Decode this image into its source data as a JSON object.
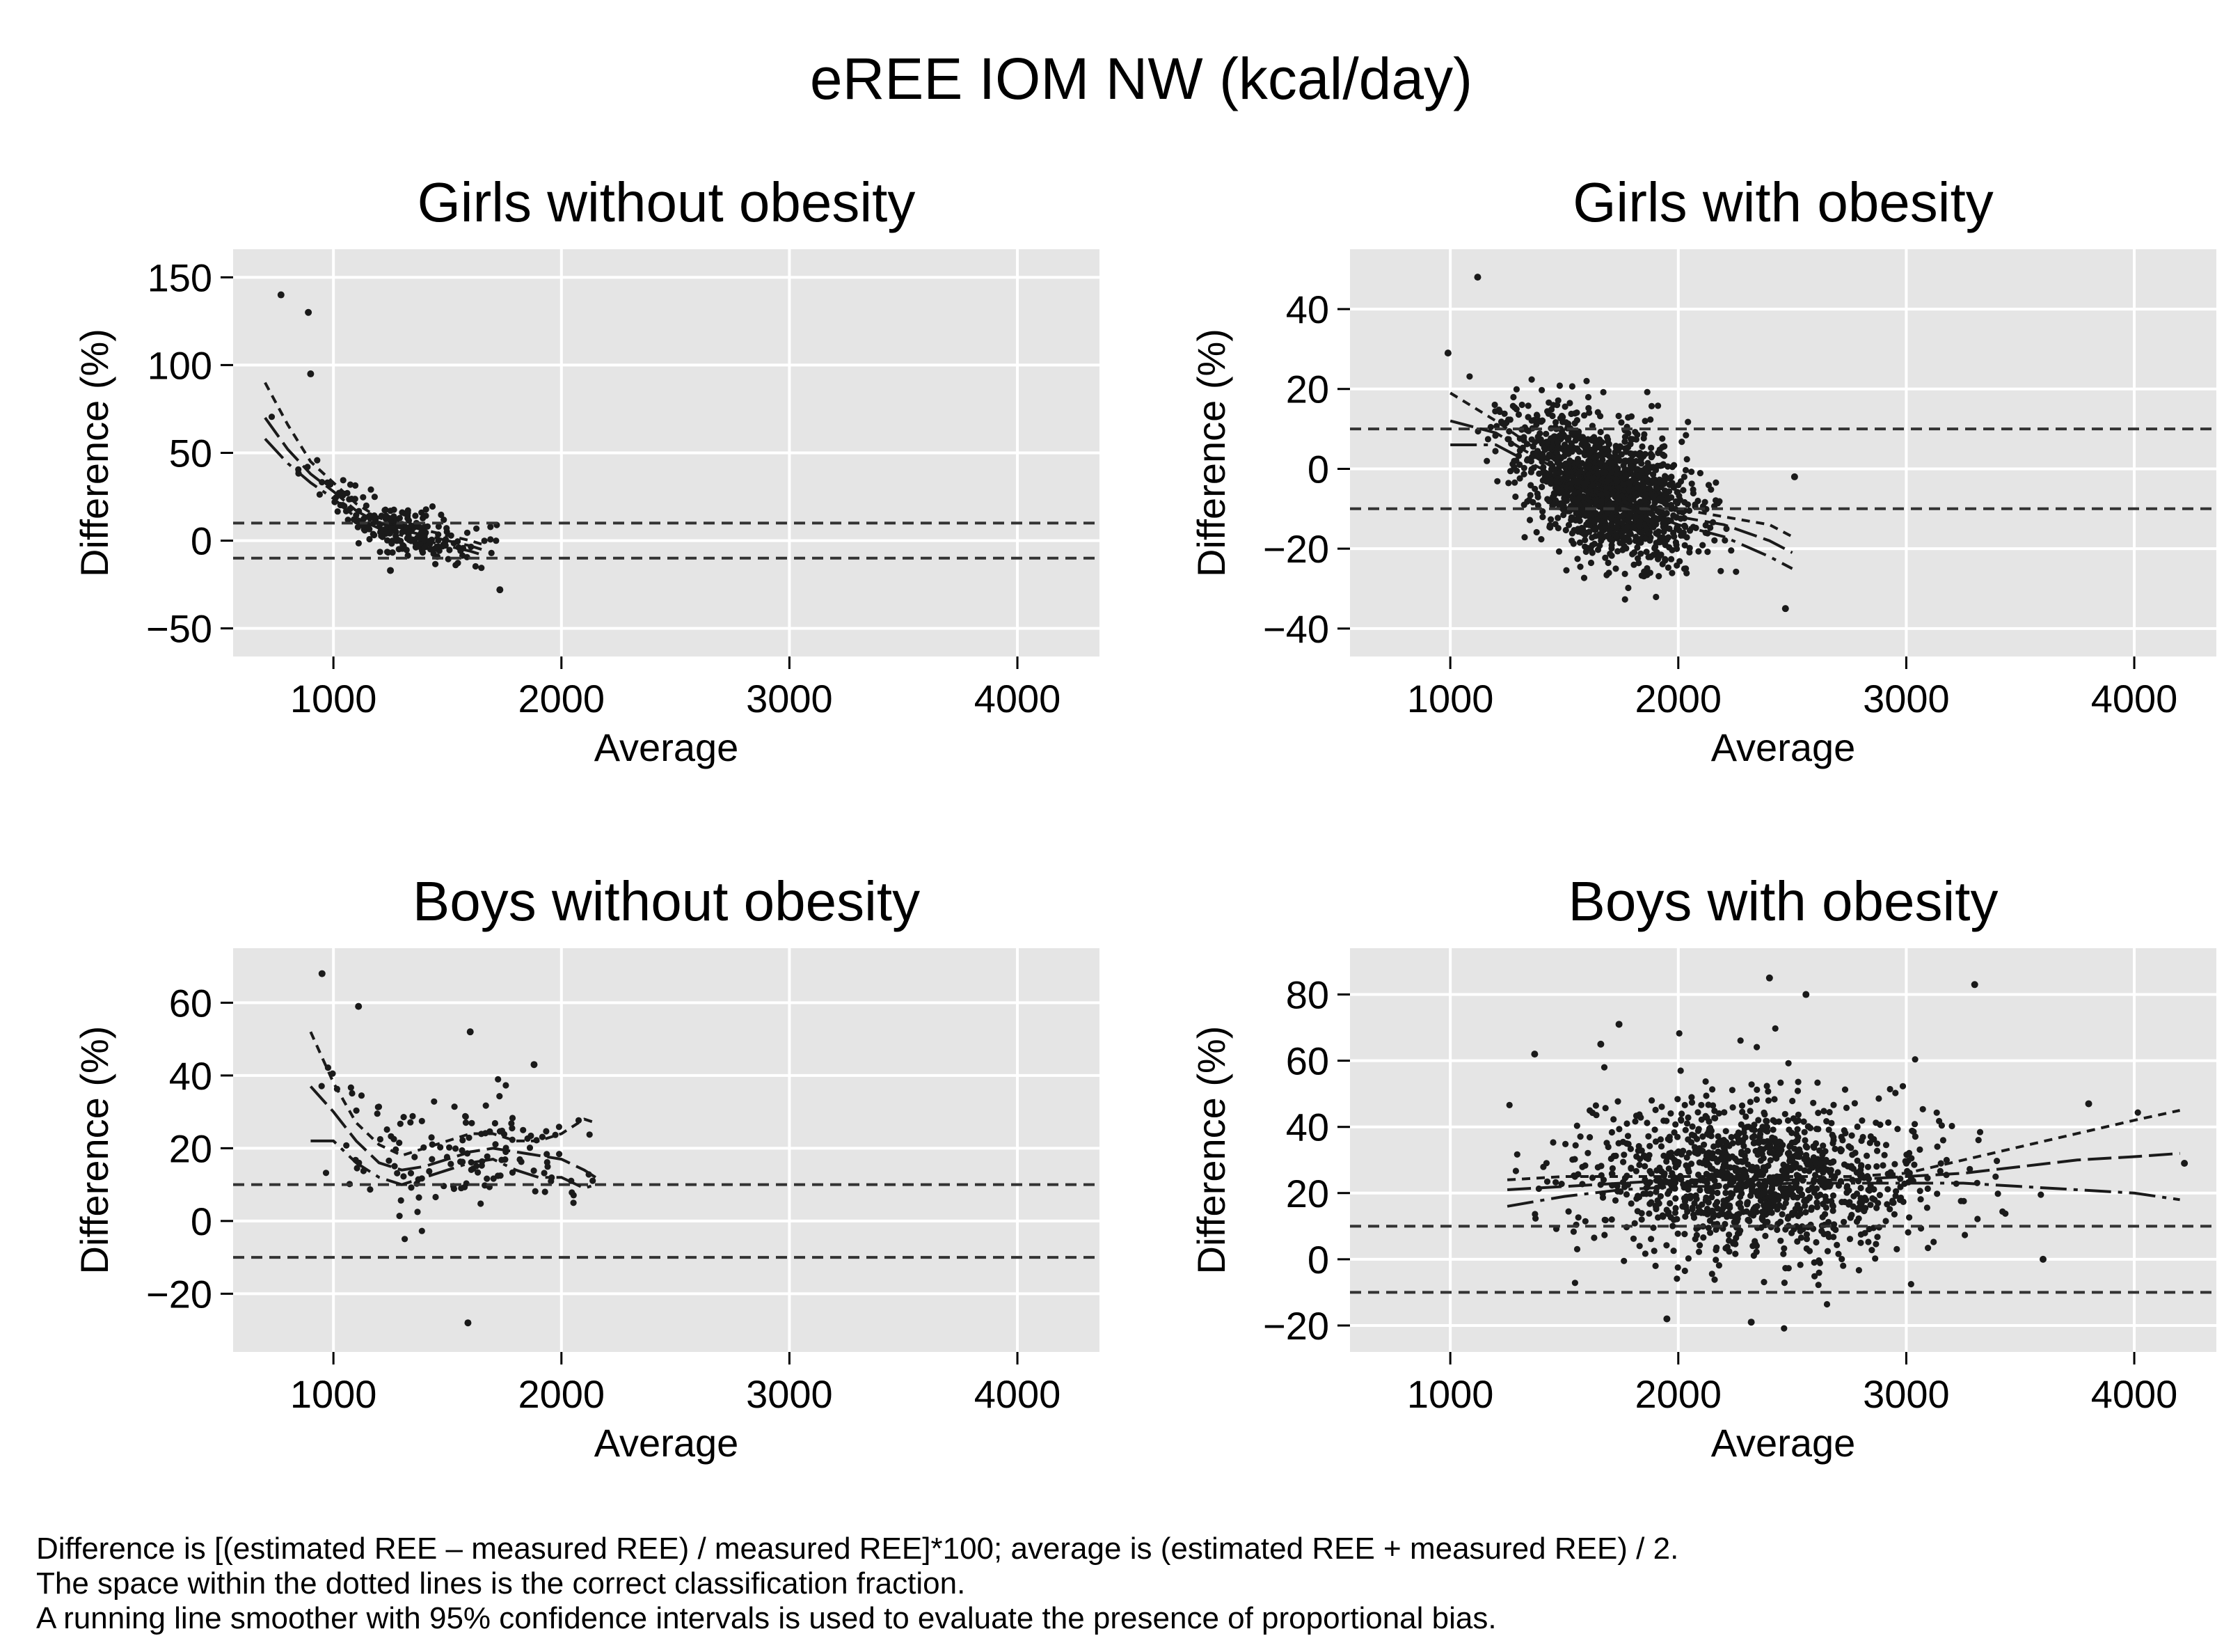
{
  "figure": {
    "title": "eREE IOM NW (kcal/day)",
    "notes": [
      "Difference is [(estimated REE – measured REE) / measured REE]*100; average is (estimated REE + measured REE) / 2.",
      "The space within the dotted lines is the correct classification fraction.",
      "A running line smoother with 95% confidence intervals is used to evaluate the presence of proportional bias."
    ]
  },
  "colors": {
    "panel_bg": "#e5e5e5",
    "grid": "#ffffff",
    "ink": "#1a1a1a"
  },
  "chart_data": [
    {
      "type": "scatter",
      "title": "Girls without obesity",
      "xlabel": "Average",
      "ylabel": "Difference (%)",
      "xlim": [
        560,
        4360
      ],
      "ylim": [
        -66,
        166
      ],
      "xticks": [
        1000,
        2000,
        3000,
        4000
      ],
      "yticks": [
        -50,
        0,
        50,
        100,
        150
      ],
      "reference_lines": [
        10,
        -10
      ],
      "smoother": {
        "x": [
          700,
          800,
          900,
          1000,
          1100,
          1200,
          1300,
          1400,
          1500,
          1600,
          1650
        ],
        "fit": [
          70,
          52,
          38,
          28,
          17,
          10,
          6,
          3,
          0,
          -3,
          -5
        ],
        "upper": [
          90,
          66,
          45,
          33,
          21,
          13,
          9,
          6,
          3,
          0,
          -2
        ],
        "lower": [
          58,
          44,
          33,
          24,
          13,
          7,
          3,
          0,
          -3,
          -6,
          -8
        ]
      },
      "cloud": {
        "n": 220,
        "x_mean": 1300,
        "x_sd": 180,
        "x_range": [
          660,
          1720
        ],
        "resid_sd": 7,
        "seed": 11
      },
      "extra_points": [
        [
          770,
          140
        ],
        [
          890,
          130
        ],
        [
          900,
          95
        ],
        [
          1730,
          -28
        ],
        [
          1250,
          -17
        ]
      ]
    },
    {
      "type": "scatter",
      "title": "Girls with obesity",
      "xlabel": "Average",
      "ylabel": "Difference (%)",
      "xlim": [
        560,
        4360
      ],
      "ylim": [
        -47,
        55
      ],
      "xticks": [
        1000,
        2000,
        3000,
        4000
      ],
      "yticks": [
        -40,
        -20,
        0,
        20,
        40
      ],
      "reference_lines": [
        10,
        -10
      ],
      "smoother": {
        "x": [
          1000,
          1200,
          1400,
          1600,
          1800,
          2000,
          2200,
          2400,
          2500
        ],
        "fit": [
          12,
          9,
          2,
          -4,
          -8,
          -12,
          -14,
          -18,
          -21
        ],
        "upper": [
          19,
          12,
          4,
          -2,
          -6,
          -10,
          -12,
          -14,
          -17
        ],
        "lower": [
          6,
          6,
          0,
          -6,
          -10,
          -14,
          -17,
          -22,
          -25
        ]
      },
      "cloud": {
        "n": 1500,
        "x_mean": 1680,
        "x_sd": 190,
        "x_range": [
          980,
          2500
        ],
        "resid_sd": 8,
        "seed": 23
      },
      "extra_points": [
        [
          1120,
          48
        ],
        [
          990,
          29
        ],
        [
          2470,
          -35
        ],
        [
          2510,
          -2
        ]
      ]
    },
    {
      "type": "scatter",
      "title": "Boys without obesity",
      "xlabel": "Average",
      "ylabel": "Difference (%)",
      "xlim": [
        560,
        4360
      ],
      "ylim": [
        -36,
        75
      ],
      "xticks": [
        1000,
        2000,
        3000,
        4000
      ],
      "yticks": [
        -20,
        0,
        20,
        40,
        60
      ],
      "reference_lines": [
        10,
        -10
      ],
      "smoother": {
        "x": [
          900,
          1000,
          1100,
          1200,
          1300,
          1400,
          1500,
          1600,
          1700,
          1800,
          1900,
          2000,
          2100,
          2150
        ],
        "fit": [
          37,
          30,
          22,
          16,
          14,
          15,
          17,
          19,
          20,
          19,
          18,
          17,
          14,
          12
        ],
        "upper": [
          52,
          38,
          27,
          21,
          18,
          20,
          22,
          24,
          24,
          22,
          22,
          24,
          28,
          27
        ],
        "lower": [
          22,
          22,
          16,
          12,
          10,
          12,
          14,
          16,
          17,
          14,
          12,
          12,
          9,
          10
        ]
      },
      "cloud": {
        "n": 140,
        "x_mean": 1560,
        "x_sd": 330,
        "x_range": [
          900,
          2200
        ],
        "resid_sd": 8,
        "seed": 37
      },
      "extra_points": [
        [
          950,
          68
        ],
        [
          1110,
          59
        ],
        [
          1590,
          -28
        ],
        [
          1600,
          52
        ],
        [
          1880,
          43
        ]
      ]
    },
    {
      "type": "scatter",
      "title": "Boys with obesity",
      "xlabel": "Average",
      "ylabel": "Difference (%)",
      "xlim": [
        560,
        4360
      ],
      "ylim": [
        -28,
        94
      ],
      "xticks": [
        1000,
        2000,
        3000,
        4000
      ],
      "yticks": [
        -20,
        0,
        20,
        40,
        60,
        80
      ],
      "reference_lines": [
        10,
        -10
      ],
      "smoother": {
        "x": [
          1250,
          1500,
          1750,
          2000,
          2250,
          2500,
          2750,
          3000,
          3250,
          3500,
          3750,
          4000,
          4200
        ],
        "fit": [
          21,
          22,
          23,
          24,
          24,
          24,
          24,
          25,
          26,
          28,
          30,
          31,
          32
        ],
        "upper": [
          24,
          25,
          25,
          25,
          25,
          25,
          25,
          26,
          30,
          34,
          38,
          42,
          45
        ],
        "lower": [
          16,
          19,
          21,
          22,
          22,
          23,
          23,
          23,
          23,
          22,
          21,
          20,
          18
        ]
      },
      "cloud": {
        "n": 1200,
        "x_mean": 2350,
        "x_sd": 380,
        "x_range": [
          1250,
          4220
        ],
        "resid_sd": 12,
        "seed": 59
      },
      "extra_points": [
        [
          2400,
          85
        ],
        [
          3300,
          83
        ],
        [
          2560,
          80
        ],
        [
          1740,
          71
        ],
        [
          1660,
          65
        ],
        [
          1950,
          -18
        ],
        [
          2320,
          -19
        ],
        [
          1370,
          62
        ],
        [
          3600,
          0
        ],
        [
          3800,
          47
        ],
        [
          4220,
          29
        ]
      ]
    }
  ]
}
